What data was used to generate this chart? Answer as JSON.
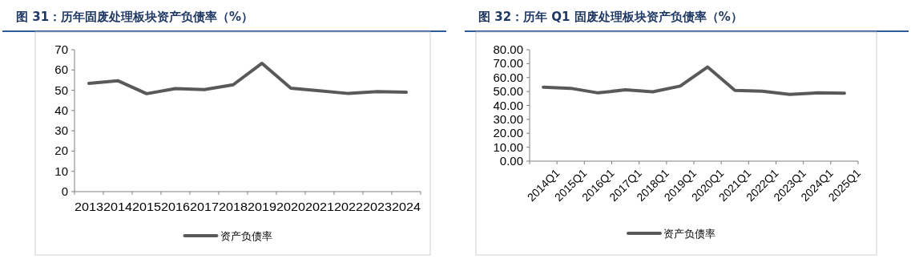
{
  "chart_data": [
    {
      "type": "line",
      "title": "图 31：历年固废处理板块资产负债率（%）",
      "categories": [
        "2013",
        "2014",
        "2015",
        "2016",
        "2017",
        "2018",
        "2019",
        "2020",
        "2021",
        "2022",
        "2023",
        "2024"
      ],
      "series": [
        {
          "name": "资产负债率",
          "color": "#595959",
          "values": [
            53.4,
            54.7,
            48.3,
            50.8,
            50.3,
            52.7,
            63.3,
            51.0,
            49.7,
            48.4,
            49.3,
            49.0
          ]
        }
      ],
      "ylim": [
        0,
        70
      ],
      "yticks": [
        0,
        10,
        20,
        30,
        40,
        50,
        60,
        70
      ],
      "grid": false,
      "legend": "bottom",
      "marker": "none",
      "line_style": "solid"
    },
    {
      "type": "line",
      "title": "图 32：历年 Q1 固废处理板块资产负债率（%）",
      "categories": [
        "2014Q1",
        "2015Q1",
        "2016Q1",
        "2017Q1",
        "2018Q1",
        "2019Q1",
        "2020Q1",
        "2021Q1",
        "2022Q1",
        "2023Q1",
        "2024Q1",
        "2025Q1"
      ],
      "series": [
        {
          "name": "资产负债率",
          "color": "#595959",
          "values": [
            53.1,
            52.3,
            49.0,
            51.2,
            49.8,
            53.9,
            67.6,
            50.8,
            50.2,
            47.9,
            49.0,
            48.8
          ]
        }
      ],
      "ylim": [
        0,
        80
      ],
      "yticks": [
        {
          "value": 0,
          "label": "0.00"
        },
        {
          "value": 10,
          "label": "10.00"
        },
        {
          "value": 20,
          "label": "20.00"
        },
        {
          "value": 30,
          "label": "30.00"
        },
        {
          "value": 40,
          "label": "40.00"
        },
        {
          "value": 50,
          "label": "50.00"
        },
        {
          "value": 60,
          "label": "60.00"
        },
        {
          "value": 70,
          "label": "70.00"
        },
        {
          "value": 80,
          "label": "80.00"
        }
      ],
      "grid": false,
      "legend": "bottom",
      "marker": "none",
      "line_style": "solid"
    }
  ]
}
